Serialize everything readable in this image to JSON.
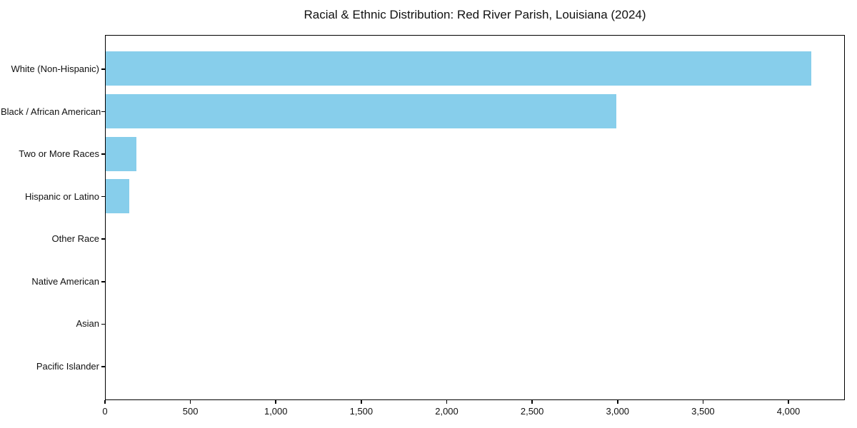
{
  "chart_data": {
    "type": "bar",
    "orientation": "horizontal",
    "title": "Racial & Ethnic Distribution: Red River Parish, Louisiana (2024)",
    "xlabel": "",
    "ylabel": "",
    "categories": [
      "White (Non-Hispanic)",
      "Black / African American",
      "Two or More Races",
      "Hispanic or Latino",
      "Other Race",
      "Native American",
      "Asian",
      "Pacific Islander"
    ],
    "values": [
      4130,
      2990,
      180,
      140,
      0,
      0,
      0,
      0
    ],
    "xlim": [
      0,
      4330
    ],
    "xticks": [
      0,
      500,
      1000,
      1500,
      2000,
      2500,
      3000,
      3500,
      4000
    ],
    "xtick_labels": [
      "0",
      "500",
      "1,000",
      "1,500",
      "2,000",
      "2,500",
      "3,000",
      "3,500",
      "4,000"
    ],
    "grid": false,
    "legend": null,
    "bar_color": "#87CEEB",
    "background_color": "#FFFFFF",
    "text_color": "#111111",
    "spine_color": "#000000"
  }
}
